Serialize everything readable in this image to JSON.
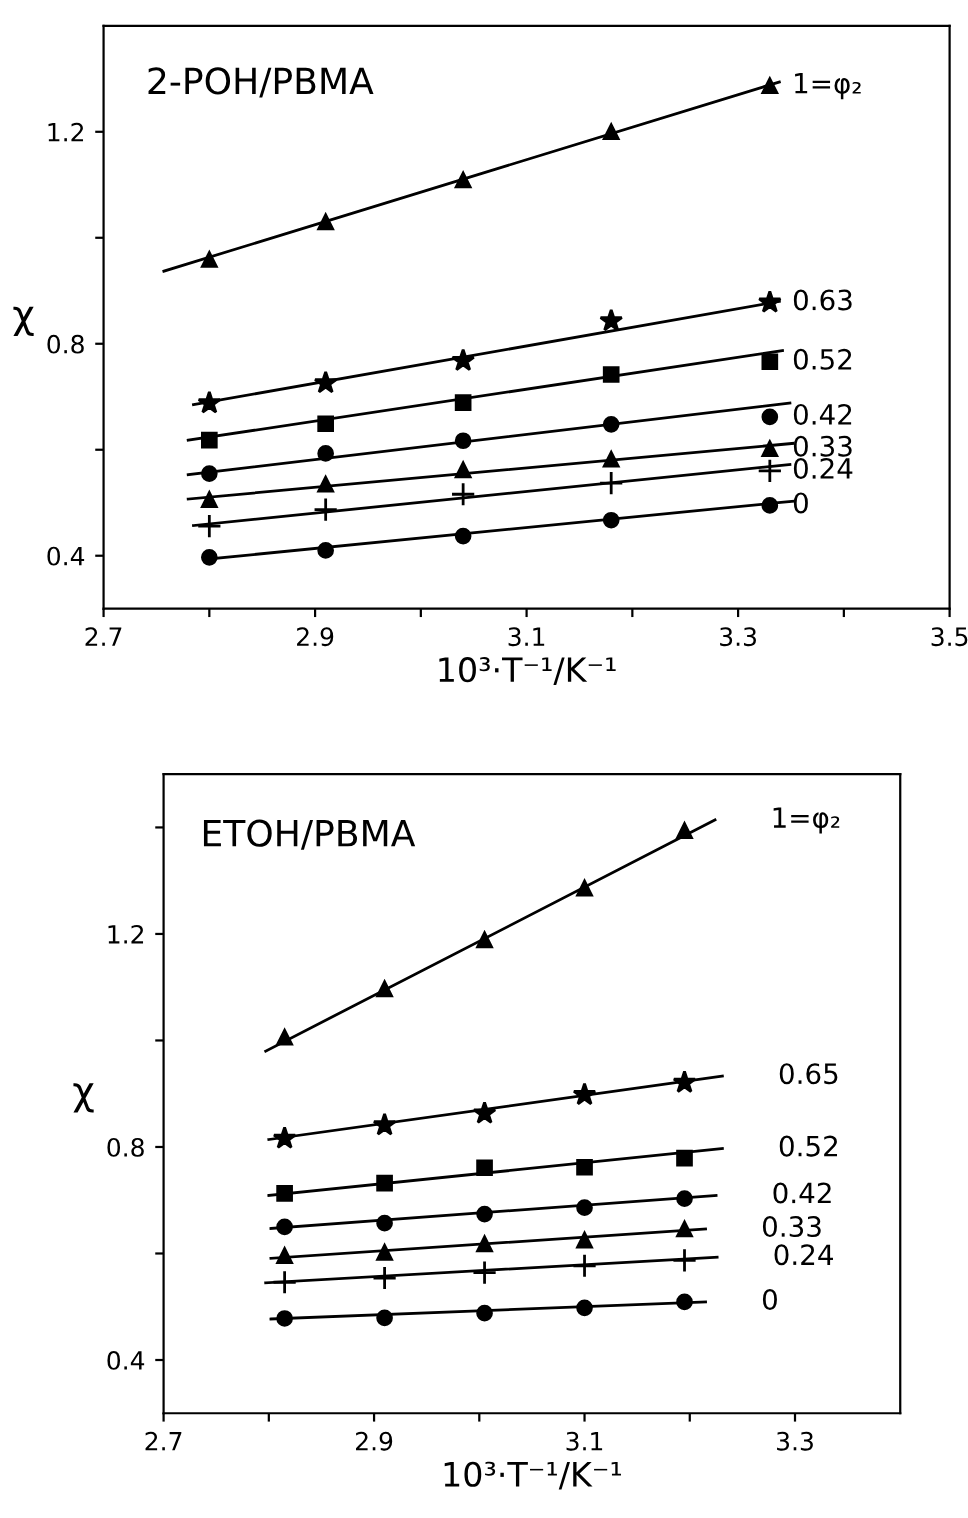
{
  "chart_data": [
    {
      "type": "scatter",
      "title": "2-POH/PBMA",
      "xlabel": "10³·T⁻¹/K⁻¹",
      "ylabel": "χ",
      "xlim": [
        2.7,
        3.5
      ],
      "ylim": [
        0.3,
        1.4
      ],
      "xticks": [
        2.7,
        {
          "value": 2.8,
          "label": null
        },
        2.9,
        {
          "value": 3.0,
          "label": null
        },
        3.1,
        {
          "value": 3.2,
          "label": null
        },
        3.3,
        {
          "value": 3.4,
          "label": null
        },
        3.5
      ],
      "yticks": [
        0.4,
        {
          "value": 0.6,
          "label": null
        },
        0.8,
        {
          "value": 1.0,
          "label": null
        },
        1.2
      ],
      "series": [
        {
          "name": "1=φ₂",
          "marker": "triangle",
          "color": "#000000",
          "x": [
            2.8,
            2.91,
            3.04,
            3.18,
            3.33
          ],
          "values": [
            0.959,
            1.03,
            1.109,
            1.2,
            1.287
          ]
        },
        {
          "type": "line",
          "color": "#000000",
          "x": [
            2.757,
            3.339
          ],
          "values": [
            0.937,
            1.294
          ]
        },
        {
          "name": "0.63",
          "marker": "star",
          "color": "#000000",
          "x": [
            2.8,
            2.91,
            3.04,
            3.18,
            3.33
          ],
          "values": [
            0.688,
            0.726,
            0.768,
            0.843,
            0.878
          ]
        },
        {
          "type": "line",
          "color": "#000000",
          "x": [
            2.785,
            3.339
          ],
          "values": [
            0.685,
            0.88
          ]
        },
        {
          "name": "0.52",
          "marker": "square",
          "color": "#000000",
          "x": [
            2.8,
            2.91,
            3.04,
            3.18,
            3.33
          ],
          "values": [
            0.618,
            0.649,
            0.689,
            0.742,
            0.766
          ]
        },
        {
          "type": "line",
          "color": "#000000",
          "x": [
            2.78,
            3.342
          ],
          "values": [
            0.618,
            0.787
          ]
        },
        {
          "name": "0.42",
          "marker": "circle",
          "color": "#000000",
          "x": [
            2.8,
            2.91,
            3.04,
            3.18,
            3.33
          ],
          "values": [
            0.555,
            0.593,
            0.617,
            0.648,
            0.662
          ]
        },
        {
          "type": "line",
          "color": "#000000",
          "x": [
            2.78,
            3.349
          ],
          "values": [
            0.553,
            0.688
          ]
        },
        {
          "name": "0.33",
          "marker": "triangle",
          "color": "#000000",
          "x": [
            2.8,
            2.91,
            3.04,
            3.18,
            3.33
          ],
          "values": [
            0.506,
            0.535,
            0.562,
            0.582,
            0.602
          ]
        },
        {
          "type": "line",
          "color": "#000000",
          "x": [
            2.78,
            3.352
          ],
          "values": [
            0.507,
            0.612
          ]
        },
        {
          "name": "0.24",
          "marker": "cross",
          "color": "#000000",
          "x": [
            2.8,
            2.91,
            3.04,
            3.18,
            3.33
          ],
          "values": [
            0.456,
            0.487,
            0.516,
            0.537,
            0.56
          ]
        },
        {
          "type": "line",
          "color": "#000000",
          "x": [
            2.785,
            3.349
          ],
          "values": [
            0.457,
            0.572
          ]
        },
        {
          "name": "0",
          "marker": "circle",
          "color": "#000000",
          "x": [
            2.8,
            2.91,
            3.04,
            3.18,
            3.33
          ],
          "values": [
            0.397,
            0.41,
            0.437,
            0.467,
            0.495
          ]
        },
        {
          "type": "line",
          "color": "#000000",
          "x": [
            2.8,
            3.352
          ],
          "values": [
            0.394,
            0.503
          ]
        }
      ]
    },
    {
      "type": "scatter",
      "title": "ETOH/PBMA",
      "xlabel": "10³·T⁻¹/K⁻¹",
      "ylabel": "χ",
      "xlim": [
        2.7,
        3.4
      ],
      "ylim": [
        0.3,
        1.5
      ],
      "xticks": [
        2.7,
        {
          "value": 2.8,
          "label": null
        },
        2.9,
        {
          "value": 3.0,
          "label": null
        },
        3.1,
        {
          "value": 3.2,
          "label": null
        },
        3.3
      ],
      "yticks": [
        0.4,
        {
          "value": 0.6,
          "label": null
        },
        0.8,
        {
          "value": 1.0,
          "label": null
        },
        1.2,
        {
          "value": 1.4,
          "label": null
        }
      ],
      "series": [
        {
          "marker": "triangle",
          "color": "#000000",
          "x": [
            2.815,
            2.91,
            3.005,
            3.1,
            3.195
          ],
          "values": [
            1.006,
            1.097,
            1.189,
            1.286,
            1.394
          ]
        },
        {
          "type": "line",
          "name": "1=φ₂",
          "color": "#000000",
          "x": [
            2.797,
            3.224
          ],
          "values": [
            0.98,
            1.414
          ]
        },
        {
          "marker": "star",
          "color": "#000000",
          "x": [
            2.815,
            2.91,
            3.005,
            3.1,
            3.195
          ],
          "values": [
            0.816,
            0.841,
            0.863,
            0.898,
            0.921
          ]
        },
        {
          "type": "line",
          "name": "0.65",
          "color": "#000000",
          "x": [
            2.8,
            3.231
          ],
          "values": [
            0.814,
            0.933
          ]
        },
        {
          "marker": "square",
          "color": "#000000",
          "x": [
            2.815,
            2.91,
            3.005,
            3.1,
            3.195
          ],
          "values": [
            0.713,
            0.732,
            0.761,
            0.762,
            0.779
          ]
        },
        {
          "type": "line",
          "name": "0.52",
          "color": "#000000",
          "x": [
            2.8,
            3.231
          ],
          "values": [
            0.709,
            0.797
          ]
        },
        {
          "marker": "circle",
          "color": "#000000",
          "x": [
            2.815,
            2.91,
            3.005,
            3.1,
            3.195
          ],
          "values": [
            0.65,
            0.657,
            0.674,
            0.686,
            0.703
          ]
        },
        {
          "type": "line",
          "name": "0.42",
          "color": "#000000",
          "x": [
            2.802,
            3.225
          ],
          "values": [
            0.647,
            0.709
          ]
        },
        {
          "marker": "triangle",
          "color": "#000000",
          "x": [
            2.815,
            2.91,
            3.005,
            3.1,
            3.195
          ],
          "values": [
            0.596,
            0.602,
            0.618,
            0.625,
            0.646
          ]
        },
        {
          "type": "line",
          "name": "0.33",
          "color": "#000000",
          "x": [
            2.802,
            3.215
          ],
          "values": [
            0.591,
            0.646
          ]
        },
        {
          "marker": "cross",
          "color": "#000000",
          "x": [
            2.815,
            2.91,
            3.005,
            3.1,
            3.195
          ],
          "values": [
            0.546,
            0.554,
            0.564,
            0.577,
            0.587
          ]
        },
        {
          "type": "line",
          "name": "0.24",
          "color": "#000000",
          "x": [
            2.797,
            3.226
          ],
          "values": [
            0.545,
            0.593
          ]
        },
        {
          "marker": "circle",
          "color": "#000000",
          "x": [
            2.815,
            2.91,
            3.005,
            3.1,
            3.195
          ],
          "values": [
            0.478,
            0.479,
            0.488,
            0.498,
            0.509
          ]
        },
        {
          "type": "line",
          "name": "0",
          "color": "#000000",
          "x": [
            2.802,
            3.215
          ],
          "values": [
            0.477,
            0.509
          ]
        }
      ]
    }
  ]
}
